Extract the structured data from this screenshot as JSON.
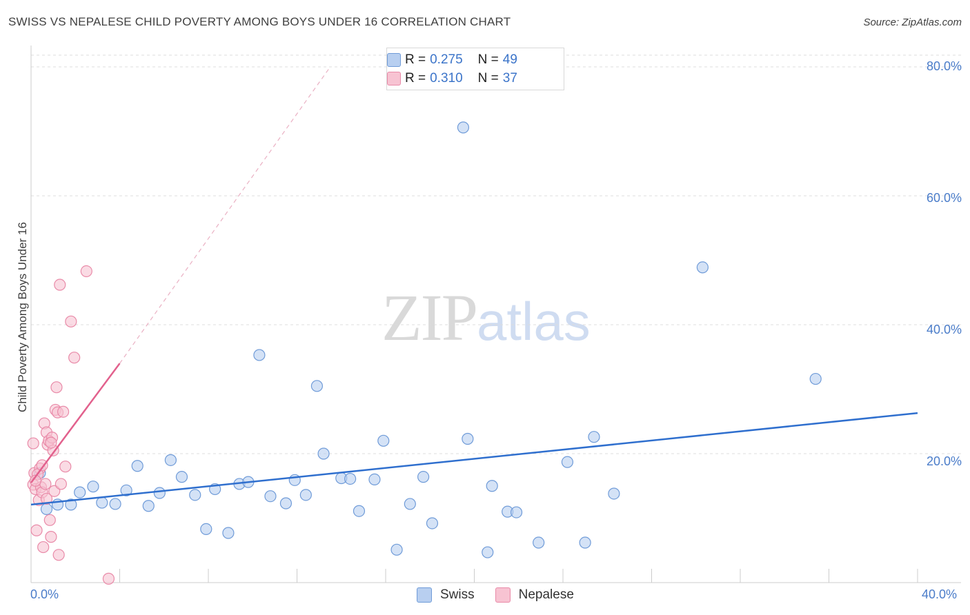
{
  "chart_data": {
    "type": "scatter",
    "title": "SWISS VS NEPALESE CHILD POVERTY AMONG BOYS UNDER 16 CORRELATION CHART",
    "source": "Source: ZipAtlas.com",
    "xlabel": "",
    "ylabel": "Child Poverty Among Boys Under 16",
    "xlim": [
      0,
      40
    ],
    "ylim": [
      0,
      80
    ],
    "x_tick_labels": [
      "0.0%",
      "40.0%"
    ],
    "y_tick_labels": [
      "80.0%",
      "60.0%",
      "40.0%",
      "20.0%"
    ],
    "y_tick_values": [
      80,
      60,
      40,
      20
    ],
    "grid": true,
    "legend": [
      {
        "name": "Swiss",
        "r_label": "R =",
        "r_value": "0.275",
        "n_label": "N =",
        "n_value": "49",
        "fill": "#b8cff0",
        "stroke": "#6f9bd8"
      },
      {
        "name": "Nepalese",
        "r_label": "R =",
        "r_value": "0.310",
        "n_label": "N =",
        "n_value": "37",
        "fill": "#f7c3d2",
        "stroke": "#e98aa8"
      }
    ],
    "watermark": {
      "zip": "ZIP",
      "atlas": "atlas"
    },
    "series": [
      {
        "name": "Swiss",
        "color": "#6f9bd8",
        "fill": "#b8cff0",
        "trend": {
          "x": [
            0.0,
            40.0
          ],
          "y": [
            12.1,
            26.3
          ],
          "color": "#2f6fce"
        },
        "points": [
          [
            0.4,
            17.0
          ],
          [
            0.7,
            11.4
          ],
          [
            1.2,
            12.1
          ],
          [
            1.8,
            12.1
          ],
          [
            2.2,
            14.0
          ],
          [
            2.8,
            14.9
          ],
          [
            3.2,
            12.4
          ],
          [
            3.8,
            12.2
          ],
          [
            4.3,
            14.3
          ],
          [
            4.8,
            18.1
          ],
          [
            5.3,
            11.9
          ],
          [
            5.8,
            13.9
          ],
          [
            6.3,
            19.0
          ],
          [
            6.8,
            16.4
          ],
          [
            7.4,
            13.6
          ],
          [
            7.9,
            8.3
          ],
          [
            8.3,
            14.5
          ],
          [
            8.9,
            7.7
          ],
          [
            9.4,
            15.3
          ],
          [
            9.8,
            15.6
          ],
          [
            10.3,
            35.3
          ],
          [
            10.8,
            13.4
          ],
          [
            11.5,
            12.3
          ],
          [
            11.9,
            15.9
          ],
          [
            12.4,
            13.6
          ],
          [
            12.9,
            30.5
          ],
          [
            13.2,
            20.0
          ],
          [
            14.0,
            16.2
          ],
          [
            14.4,
            16.1
          ],
          [
            14.8,
            11.1
          ],
          [
            15.5,
            16.0
          ],
          [
            15.9,
            22.0
          ],
          [
            16.5,
            5.1
          ],
          [
            17.1,
            12.2
          ],
          [
            17.7,
            16.4
          ],
          [
            18.1,
            9.2
          ],
          [
            19.5,
            70.6
          ],
          [
            19.7,
            22.3
          ],
          [
            20.6,
            4.7
          ],
          [
            20.8,
            15.0
          ],
          [
            21.5,
            11.0
          ],
          [
            21.9,
            10.9
          ],
          [
            22.9,
            6.2
          ],
          [
            24.2,
            18.7
          ],
          [
            25.0,
            6.2
          ],
          [
            25.4,
            22.6
          ],
          [
            26.3,
            13.8
          ],
          [
            30.3,
            48.9
          ],
          [
            35.4,
            31.6
          ]
        ]
      },
      {
        "name": "Nepalese",
        "color": "#e98aa8",
        "fill": "#f7c3d2",
        "trend": {
          "x": [
            0.0,
            4.0
          ],
          "y": [
            15.5,
            34.0
          ],
          "color": "#e2618d"
        },
        "trend_extension": {
          "x": [
            4.0,
            13.5
          ],
          "y": [
            34.0,
            80.0
          ]
        },
        "points": [
          [
            0.1,
            15.2
          ],
          [
            0.1,
            21.6
          ],
          [
            0.15,
            17.0
          ],
          [
            0.2,
            14.5
          ],
          [
            0.25,
            8.1
          ],
          [
            0.35,
            12.8
          ],
          [
            0.4,
            17.7
          ],
          [
            0.45,
            14.8
          ],
          [
            0.5,
            14.0
          ],
          [
            0.55,
            5.5
          ],
          [
            0.6,
            24.7
          ],
          [
            0.65,
            15.3
          ],
          [
            0.7,
            23.3
          ],
          [
            0.75,
            21.4
          ],
          [
            0.8,
            22.0
          ],
          [
            0.85,
            9.7
          ],
          [
            0.9,
            7.1
          ],
          [
            0.95,
            22.5
          ],
          [
            1.0,
            20.5
          ],
          [
            1.05,
            14.2
          ],
          [
            1.1,
            26.8
          ],
          [
            1.15,
            30.3
          ],
          [
            1.2,
            26.4
          ],
          [
            1.25,
            4.3
          ],
          [
            1.3,
            46.2
          ],
          [
            1.35,
            15.3
          ],
          [
            1.45,
            26.5
          ],
          [
            1.55,
            18.0
          ],
          [
            1.8,
            40.5
          ],
          [
            1.95,
            34.9
          ],
          [
            2.5,
            48.3
          ],
          [
            3.5,
            0.6
          ],
          [
            0.3,
            16.8
          ],
          [
            0.5,
            18.2
          ],
          [
            0.9,
            21.7
          ],
          [
            0.7,
            13.0
          ],
          [
            0.2,
            15.8
          ]
        ]
      }
    ]
  }
}
